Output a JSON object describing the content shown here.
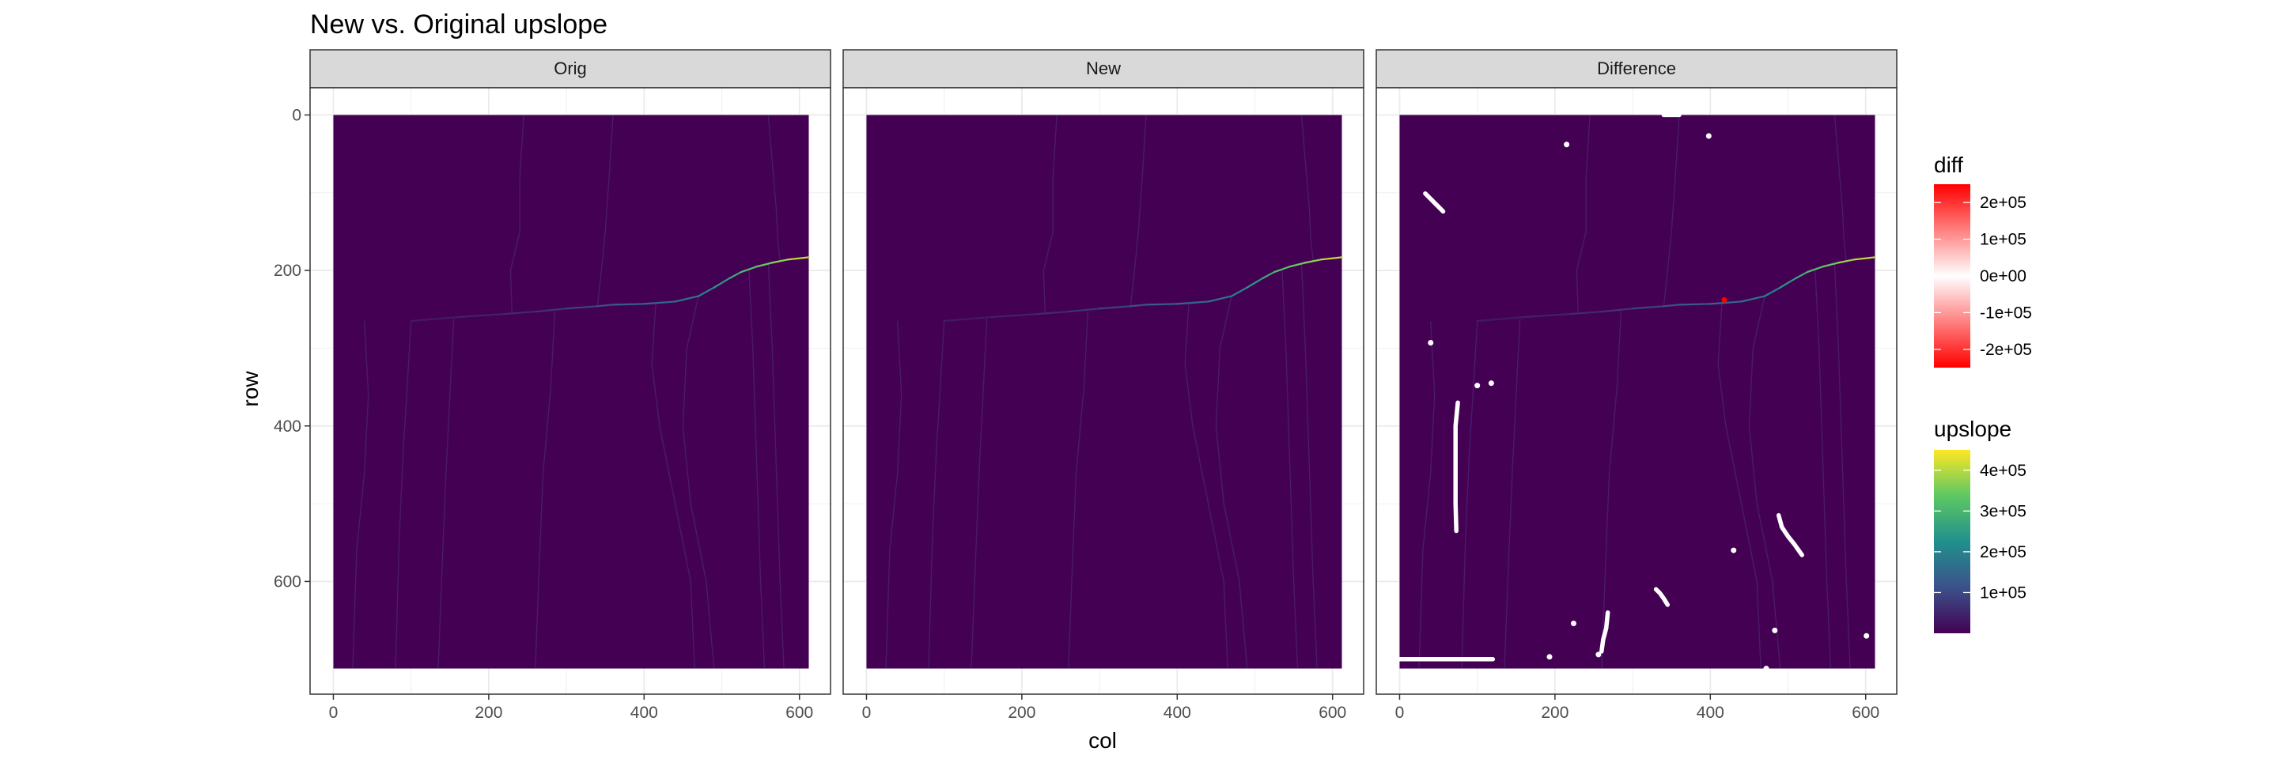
{
  "chart_data": {
    "type": "heatmap",
    "title": "New vs. Original upslope",
    "xlabel": "col",
    "ylabel": "row",
    "xlim": [
      -30,
      640
    ],
    "ylim": [
      -35,
      745
    ],
    "y_reversed": true,
    "x_ticks": [
      "0",
      "200",
      "400",
      "600"
    ],
    "x_tick_values": [
      0,
      200,
      400,
      600
    ],
    "y_ticks": [
      "0",
      "200",
      "400",
      "600"
    ],
    "y_tick_values": [
      0,
      200,
      400,
      600
    ],
    "grid": true,
    "raster_extent": {
      "col": [
        0,
        612
      ],
      "row": [
        0,
        712
      ]
    },
    "background_color": "#440154",
    "panels": [
      {
        "label": "Orig"
      },
      {
        "label": "New"
      },
      {
        "label": "Difference"
      }
    ],
    "channel_main": {
      "points": [
        [
          100,
          265
        ],
        [
          160,
          260
        ],
        [
          220,
          256
        ],
        [
          260,
          253
        ],
        [
          300,
          249
        ],
        [
          340,
          246
        ],
        [
          360,
          244
        ],
        [
          400,
          243
        ],
        [
          440,
          240
        ],
        [
          470,
          233
        ],
        [
          490,
          222
        ],
        [
          510,
          210
        ],
        [
          525,
          202
        ],
        [
          545,
          195
        ],
        [
          565,
          190
        ],
        [
          585,
          186
        ],
        [
          612,
          183
        ]
      ],
      "values": [
        30000,
        40000,
        50000,
        60000,
        80000,
        100000,
        120000,
        140000,
        160000,
        190000,
        220000,
        260000,
        300000,
        330000,
        360000,
        390000,
        420000
      ]
    },
    "tributaries": [
      [
        [
          40,
          265
        ],
        [
          45,
          360
        ],
        [
          40,
          460
        ],
        [
          30,
          560
        ],
        [
          25,
          712
        ]
      ],
      [
        [
          100,
          265
        ],
        [
          95,
          350
        ],
        [
          90,
          430
        ],
        [
          85,
          540
        ],
        [
          80,
          712
        ]
      ],
      [
        [
          155,
          262
        ],
        [
          150,
          360
        ],
        [
          145,
          460
        ],
        [
          140,
          580
        ],
        [
          135,
          712
        ]
      ],
      [
        [
          230,
          256
        ],
        [
          228,
          200
        ],
        [
          240,
          150
        ],
        [
          240,
          80
        ],
        [
          245,
          0
        ]
      ],
      [
        [
          285,
          252
        ],
        [
          280,
          350
        ],
        [
          270,
          460
        ],
        [
          265,
          580
        ],
        [
          260,
          712
        ]
      ],
      [
        [
          340,
          246
        ],
        [
          345,
          200
        ],
        [
          350,
          150
        ],
        [
          355,
          80
        ],
        [
          360,
          0
        ]
      ],
      [
        [
          415,
          243
        ],
        [
          410,
          320
        ],
        [
          420,
          400
        ],
        [
          440,
          500
        ],
        [
          460,
          600
        ],
        [
          465,
          712
        ]
      ],
      [
        [
          470,
          233
        ],
        [
          455,
          300
        ],
        [
          450,
          400
        ],
        [
          460,
          500
        ],
        [
          480,
          600
        ],
        [
          490,
          712
        ]
      ],
      [
        [
          535,
          200
        ],
        [
          540,
          300
        ],
        [
          545,
          450
        ],
        [
          550,
          600
        ],
        [
          555,
          712
        ]
      ],
      [
        [
          560,
          190
        ],
        [
          565,
          300
        ],
        [
          570,
          450
        ],
        [
          575,
          600
        ],
        [
          580,
          712
        ]
      ],
      [
        [
          575,
          188
        ],
        [
          572,
          160
        ],
        [
          570,
          120
        ],
        [
          565,
          60
        ],
        [
          560,
          0
        ]
      ]
    ],
    "diff_legend": {
      "title": "diff",
      "labels": [
        "2e+05",
        "1e+05",
        "0e+00",
        "-1e+05",
        "-2e+05"
      ],
      "values": [
        200000,
        100000,
        0,
        -100000,
        -200000
      ],
      "range": [
        -250000,
        250000
      ],
      "colors": [
        "#ff0000",
        "#ffffff",
        "#ff0000"
      ]
    },
    "upslope_legend": {
      "title": "upslope",
      "labels": [
        "4e+05",
        "3e+05",
        "2e+05",
        "1e+05"
      ],
      "values": [
        400000,
        300000,
        200000,
        100000
      ],
      "range": [
        0,
        450000
      ],
      "colors": [
        "#440154",
        "#3b528b",
        "#21908c",
        "#5dc863",
        "#fde725"
      ]
    },
    "difference_marks": [
      {
        "kind": "path",
        "points": [
          [
            33,
            101
          ],
          [
            40,
            108
          ],
          [
            48,
            116
          ],
          [
            56,
            124
          ]
        ]
      },
      {
        "kind": "path",
        "points": [
          [
            75,
            370
          ],
          [
            72,
            400
          ],
          [
            72,
            450
          ],
          [
            72,
            500
          ],
          [
            73,
            535
          ]
        ]
      },
      {
        "kind": "path",
        "points": [
          [
            0,
            700
          ],
          [
            30,
            700
          ],
          [
            60,
            700
          ],
          [
            90,
            700
          ],
          [
            120,
            700
          ]
        ]
      },
      {
        "kind": "path",
        "points": [
          [
            330,
            610
          ],
          [
            335,
            615
          ],
          [
            340,
            622
          ],
          [
            345,
            630
          ]
        ]
      },
      {
        "kind": "path",
        "points": [
          [
            268,
            640
          ],
          [
            266,
            660
          ],
          [
            262,
            675
          ],
          [
            260,
            690
          ]
        ]
      },
      {
        "kind": "path",
        "points": [
          [
            488,
            515
          ],
          [
            492,
            530
          ],
          [
            500,
            542
          ],
          [
            508,
            552
          ],
          [
            518,
            566
          ]
        ]
      },
      {
        "kind": "path",
        "points": [
          [
            340,
            0
          ],
          [
            350,
            0
          ],
          [
            360,
            0
          ]
        ]
      },
      {
        "kind": "dot",
        "x": 215,
        "y": 38
      },
      {
        "kind": "dot",
        "x": 398,
        "y": 27
      },
      {
        "kind": "dot",
        "x": 40,
        "y": 293
      },
      {
        "kind": "dot",
        "x": 100,
        "y": 348
      },
      {
        "kind": "dot",
        "x": 118,
        "y": 345
      },
      {
        "kind": "dot",
        "x": 430,
        "y": 560
      },
      {
        "kind": "dot",
        "x": 224,
        "y": 654
      },
      {
        "kind": "dot",
        "x": 483,
        "y": 663
      },
      {
        "kind": "dot",
        "x": 601,
        "y": 670
      },
      {
        "kind": "dot",
        "x": 193,
        "y": 697
      },
      {
        "kind": "dot",
        "x": 256,
        "y": 694
      },
      {
        "kind": "dot",
        "x": 472,
        "y": 712
      }
    ],
    "difference_hotspot": {
      "x": 418,
      "y": 238,
      "value": 200000
    }
  }
}
